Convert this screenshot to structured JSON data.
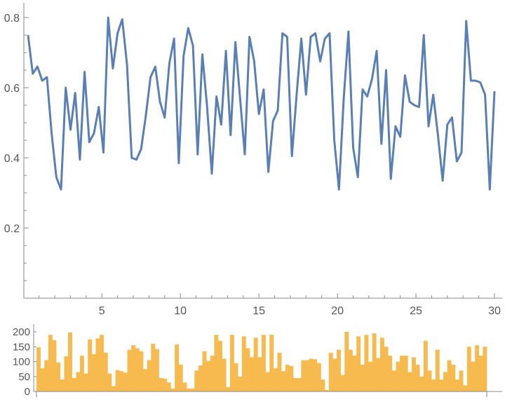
{
  "chart_data": [
    {
      "type": "line",
      "title": "",
      "xlabel": "",
      "ylabel": "",
      "xlim": [
        0,
        30
      ],
      "ylim": [
        0,
        0.8
      ],
      "grid": false,
      "x_ticks": [
        5,
        10,
        15,
        20,
        25,
        30
      ],
      "y_ticks": [
        0.2,
        0.4,
        0.6,
        0.8
      ],
      "line_color": "#5A7FB5",
      "x": [
        0.3,
        0.6,
        0.9,
        1.2,
        1.5,
        1.8,
        2.1,
        2.4,
        2.7,
        3.0,
        3.3,
        3.6,
        3.9,
        4.2,
        4.5,
        4.8,
        5.1,
        5.4,
        5.7,
        6.0,
        6.3,
        6.6,
        6.9,
        7.2,
        7.5,
        7.8,
        8.1,
        8.4,
        8.7,
        9.0,
        9.3,
        9.6,
        9.9,
        10.2,
        10.5,
        10.8,
        11.1,
        11.4,
        11.7,
        12.0,
        12.3,
        12.6,
        12.9,
        13.2,
        13.5,
        13.8,
        14.1,
        14.4,
        14.7,
        15.0,
        15.3,
        15.6,
        15.9,
        16.2,
        16.5,
        16.8,
        17.1,
        17.4,
        17.7,
        18.0,
        18.3,
        18.6,
        18.9,
        19.2,
        19.5,
        19.8,
        20.1,
        20.4,
        20.7,
        21.0,
        21.3,
        21.6,
        21.9,
        22.2,
        22.5,
        22.8,
        23.1,
        23.4,
        23.7,
        24.0,
        24.3,
        24.6,
        24.9,
        25.2,
        25.5,
        25.8,
        26.1,
        26.4,
        26.7,
        27.0,
        27.3,
        27.6,
        27.9,
        28.2,
        28.5,
        28.8,
        29.1,
        29.4,
        29.7,
        30.0
      ],
      "y": [
        0.75,
        0.64,
        0.66,
        0.62,
        0.63,
        0.47,
        0.345,
        0.31,
        0.6,
        0.48,
        0.585,
        0.395,
        0.645,
        0.445,
        0.47,
        0.545,
        0.415,
        0.8,
        0.655,
        0.755,
        0.795,
        0.665,
        0.4,
        0.395,
        0.425,
        0.52,
        0.63,
        0.66,
        0.56,
        0.515,
        0.67,
        0.74,
        0.385,
        0.69,
        0.77,
        0.72,
        0.41,
        0.695,
        0.545,
        0.355,
        0.575,
        0.495,
        0.705,
        0.465,
        0.73,
        0.57,
        0.41,
        0.745,
        0.675,
        0.525,
        0.595,
        0.36,
        0.505,
        0.535,
        0.755,
        0.745,
        0.405,
        0.58,
        0.74,
        0.58,
        0.745,
        0.755,
        0.675,
        0.74,
        0.755,
        0.45,
        0.31,
        0.57,
        0.76,
        0.43,
        0.345,
        0.595,
        0.575,
        0.625,
        0.705,
        0.44,
        0.65,
        0.34,
        0.49,
        0.46,
        0.635,
        0.56,
        0.55,
        0.545,
        0.75,
        0.49,
        0.58,
        0.465,
        0.335,
        0.495,
        0.515,
        0.39,
        0.415,
        0.79,
        0.62,
        0.62,
        0.615,
        0.58,
        0.31,
        0.59
      ]
    },
    {
      "type": "bar",
      "title": "",
      "xlabel": "",
      "ylabel": "",
      "ylim": [
        0,
        220
      ],
      "grid": false,
      "y_ticks": [
        0,
        50,
        100,
        150,
        200
      ],
      "bar_color": "#F7BA4F",
      "values": [
        148,
        78,
        105,
        190,
        172,
        97,
        40,
        118,
        198,
        45,
        65,
        120,
        60,
        175,
        125,
        178,
        190,
        130,
        60,
        18,
        72,
        68,
        63,
        140,
        155,
        145,
        135,
        75,
        105,
        160,
        142,
        45,
        43,
        30,
        10,
        158,
        90,
        30,
        10,
        10,
        70,
        87,
        135,
        102,
        120,
        190,
        170,
        110,
        15,
        190,
        95,
        50,
        185,
        145,
        115,
        180,
        115,
        190,
        65,
        190,
        78,
        130,
        68,
        90,
        85,
        45,
        45,
        105,
        105,
        110,
        108,
        95,
        40,
        5,
        130,
        110,
        140,
        55,
        200,
        140,
        120,
        185,
        90,
        190,
        100,
        195,
        112,
        180,
        150,
        120,
        70,
        100,
        120,
        120,
        65,
        115,
        90,
        50,
        170,
        70,
        40,
        140,
        40,
        65,
        105,
        90,
        40,
        70,
        20,
        150,
        100,
        155,
        120,
        150
      ]
    }
  ]
}
